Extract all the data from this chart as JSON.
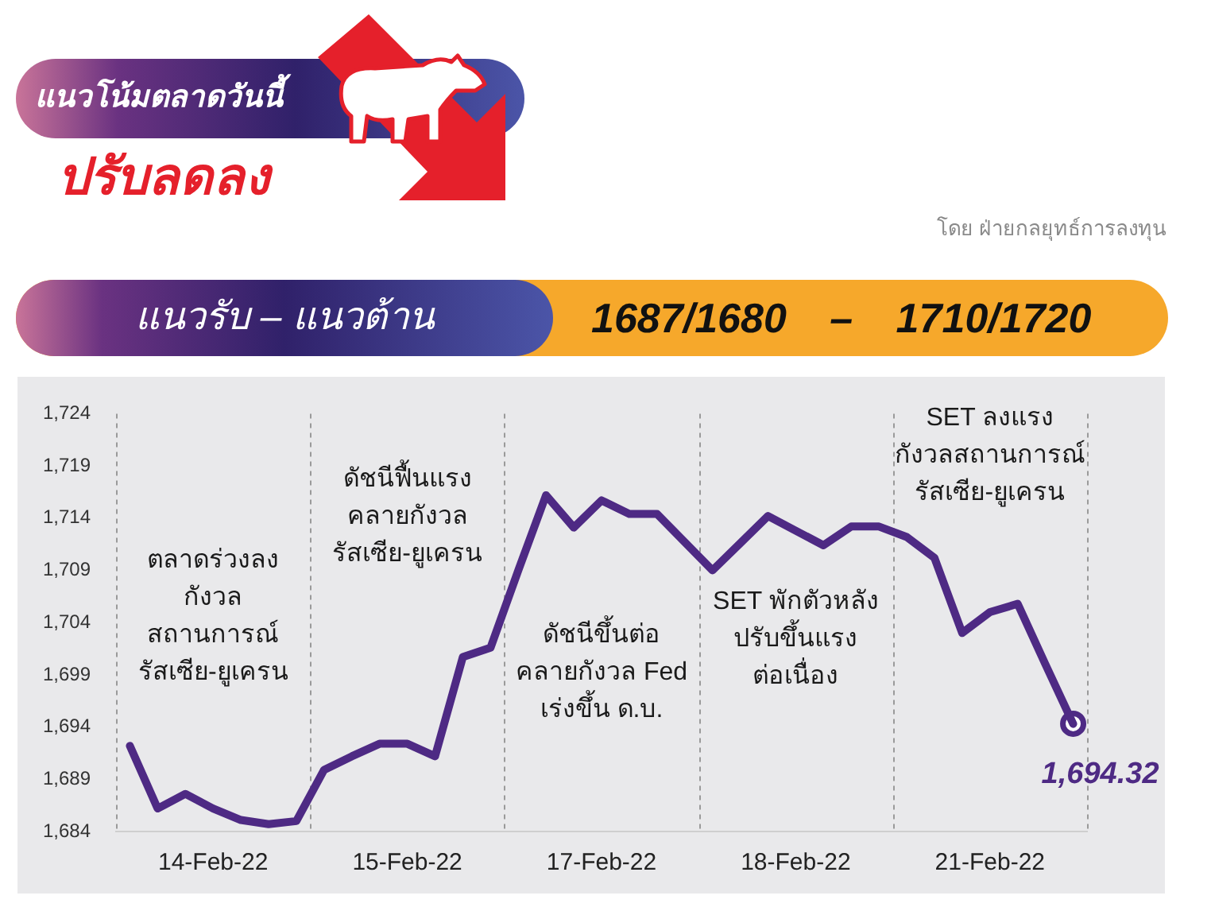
{
  "chart_data": {
    "type": "line",
    "title": "แนวโน้มตลาดวันนี้",
    "subtitle": "ปรับลดลง",
    "categories": [
      null,
      null,
      null,
      "14-Feb-22",
      null,
      null,
      null,
      null,
      null,
      null,
      "15-Feb-22",
      null,
      null,
      null,
      null,
      null,
      null,
      "17-Feb-22",
      null,
      null,
      null,
      null,
      null,
      null,
      "18-Feb-22",
      null,
      null,
      null,
      null,
      null,
      null,
      "21-Feb-22",
      null,
      null,
      null
    ],
    "series": [
      {
        "color": "#4e2a84",
        "values": [
          1692.2,
          1686.2,
          1687.6,
          1686.2,
          1685.1,
          1684.7,
          1685.0,
          1689.9,
          1691.2,
          1692.4,
          1692.4,
          1691.2,
          1700.7,
          1701.6,
          1709.0,
          1716.2,
          1713.1,
          1715.7,
          1714.4,
          1714.4,
          1711.7,
          1709.0,
          1711.6,
          1714.2,
          1712.8,
          1711.4,
          1713.2,
          1713.2,
          1712.2,
          1710.2,
          1703.0,
          1705.0,
          1705.8,
          1700.0,
          1694.3
        ]
      },
      {
        "type": "scatter",
        "color": "#4e2a84",
        "marker": "circle",
        "values": [
          null,
          null,
          null,
          null,
          null,
          null,
          null,
          null,
          null,
          null,
          null,
          null,
          null,
          null,
          null,
          null,
          null,
          null,
          null,
          null,
          null,
          null,
          null,
          null,
          null,
          null,
          null,
          null,
          null,
          null,
          null,
          null,
          null,
          null,
          1694.32
        ],
        "value_labels": [
          null,
          null,
          null,
          null,
          null,
          null,
          null,
          null,
          null,
          null,
          null,
          null,
          null,
          null,
          null,
          null,
          null,
          null,
          null,
          null,
          null,
          null,
          null,
          null,
          null,
          null,
          null,
          null,
          null,
          null,
          null,
          null,
          null,
          null,
          "1,694.32"
        ]
      }
    ],
    "ylim": [
      1684,
      1724
    ],
    "yticks": [
      {
        "value": 1684,
        "label": "1,684"
      },
      {
        "value": 1689,
        "label": "1,689"
      },
      {
        "value": 1694,
        "label": "1,694"
      },
      {
        "value": 1699,
        "label": "1,699"
      },
      {
        "value": 1704,
        "label": "1,704"
      },
      {
        "value": 1709,
        "label": "1,709"
      },
      {
        "value": 1714,
        "label": "1,714"
      },
      {
        "value": 1719,
        "label": "1,719"
      },
      {
        "value": 1724,
        "label": "1,724"
      }
    ],
    "grid": "x",
    "legend": false,
    "marker": "none",
    "line_style": "solid",
    "annotations": [
      "โดย ฝ่ายกลยุทธ์การลงทุน",
      "แนวรับ – แนวต้าน",
      "1687/1680 – 1710/1720",
      "ตลาดร่วงลง\nกังวล\nสถานการณ์\nรัสเซีย-ยูเครน",
      "ดัชนีฟื้นแรง\nคลายกังวล\nรัสเซีย-ยูเครน",
      "ดัชนีขึ้นต่อ\nคลายกังวล Fed\nเร่งขึ้น ด.บ.",
      "SET พักตัวหลัง\nปรับขึ้นแรง\nต่อเนื่อง",
      "SET ลงแรง\nกังวลสถานการณ์\nรัสเซีย-ยูเครน"
    ]
  }
}
